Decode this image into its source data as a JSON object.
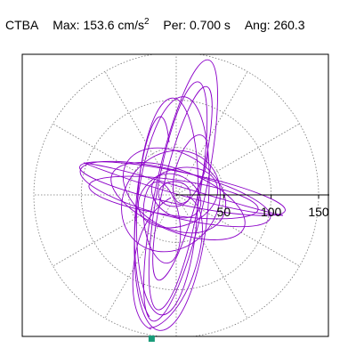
{
  "header": {
    "station": "CTBA",
    "max_label": "Max:",
    "max_value": "153.6",
    "max_unit": "cm/s",
    "max_unit_exp": "2",
    "per_label": "Per:",
    "per_value": "0.700 s",
    "ang_label": "Ang:",
    "ang_value": "260.3"
  },
  "chart_data": {
    "type": "polar-orbit",
    "radial_ticks": [
      50,
      100,
      150
    ],
    "radial_tick_labels": [
      "50",
      "100",
      "150"
    ],
    "angular_gridlines_deg": [
      0,
      30,
      60,
      90,
      120,
      150,
      180,
      210,
      240,
      270,
      300,
      330
    ],
    "grid": true,
    "trace_color": "#8B00C8",
    "marker_color": "#1a9c7a",
    "max_point": {
      "amplitude": 153.6,
      "angle_deg": 260.3
    }
  }
}
